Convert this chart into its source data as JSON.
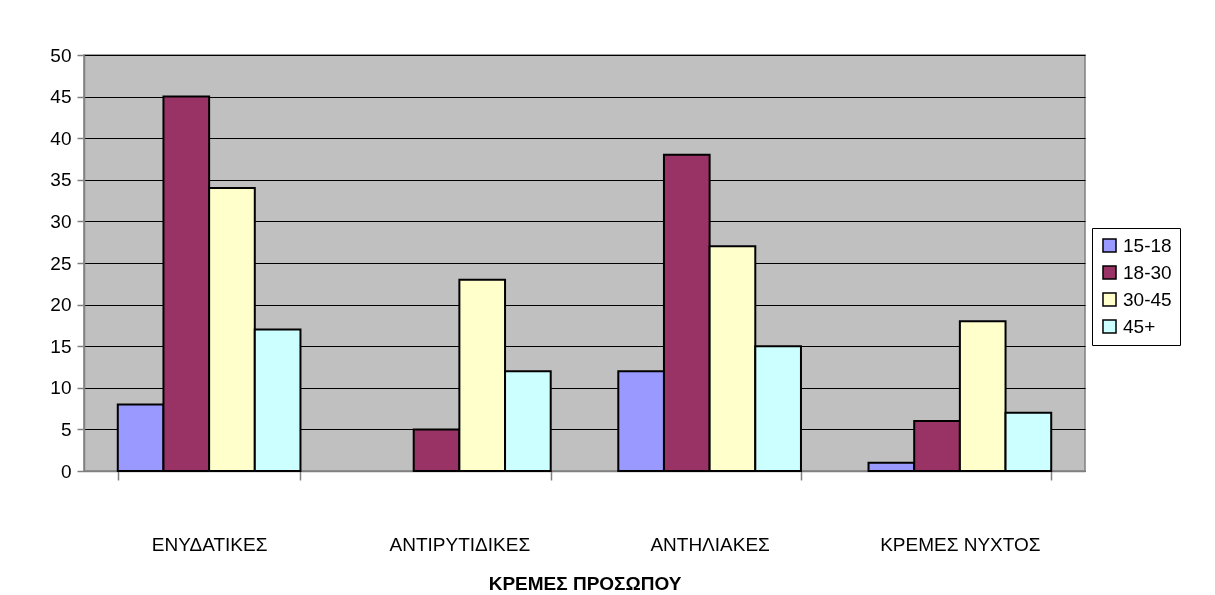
{
  "chart_data": {
    "type": "bar",
    "xlabel": "ΚΡΕΜΕΣ ΠΡΟΣΩΠΟΥ",
    "categories": [
      "ΕΝΥΔΑΤΙΚΕΣ",
      "ΑΝΤΙΡΥΤΙΔΙΚΕΣ",
      "ΑΝΤΗΛΙΑΚΕΣ",
      "ΚΡΕΜΕΣ ΝΥΧΤΟΣ"
    ],
    "series": [
      {
        "name": "15-18",
        "color": "#9999ff",
        "values": [
          8,
          null,
          12,
          1
        ]
      },
      {
        "name": "18-30",
        "color": "#993366",
        "values": [
          45,
          5,
          38,
          6
        ]
      },
      {
        "name": "30-45",
        "color": "#ffffcc",
        "values": [
          34,
          23,
          27,
          18
        ]
      },
      {
        "name": "45+",
        "color": "#ccffff",
        "values": [
          17,
          12,
          15,
          7
        ]
      }
    ],
    "ylim": [
      0,
      50
    ],
    "yticks": [
      0,
      5,
      10,
      15,
      20,
      25,
      30,
      35,
      40,
      45,
      50
    ],
    "grid": "y",
    "legend": "right"
  }
}
